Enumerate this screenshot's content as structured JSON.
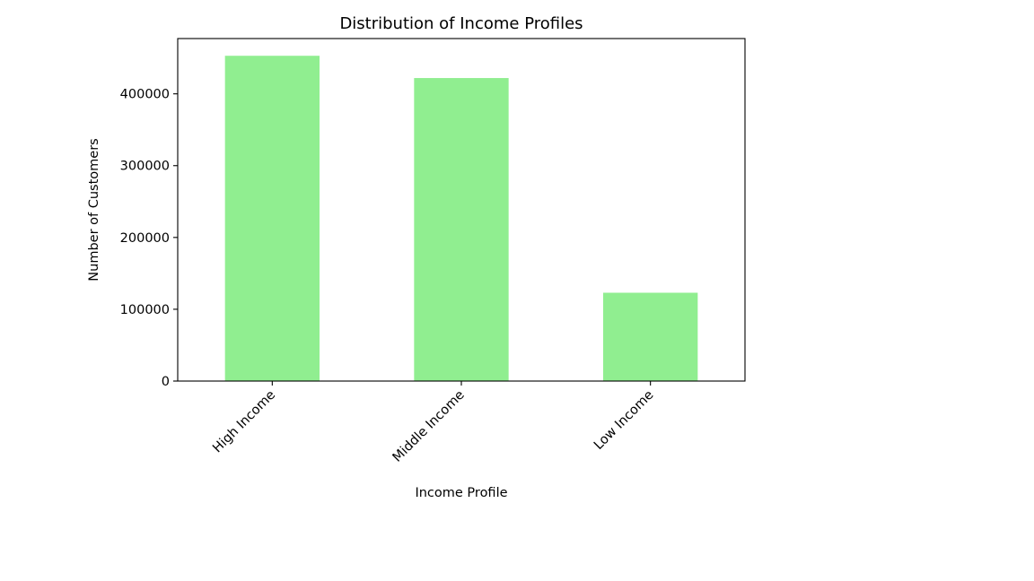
{
  "chart_data": {
    "type": "bar",
    "title": "Distribution of Income Profiles",
    "xlabel": "Income Profile",
    "ylabel": "Number of Customers",
    "categories": [
      "High Income",
      "Middle Income",
      "Low Income"
    ],
    "values": [
      453000,
      422000,
      123000
    ],
    "ylim": [
      0,
      477000
    ],
    "yticks": [
      0,
      100000,
      200000,
      300000,
      400000
    ],
    "ytick_labels": [
      "0",
      "100000",
      "200000",
      "300000",
      "400000"
    ],
    "bar_color": "#90ee90",
    "grid": false,
    "legend": "none"
  }
}
